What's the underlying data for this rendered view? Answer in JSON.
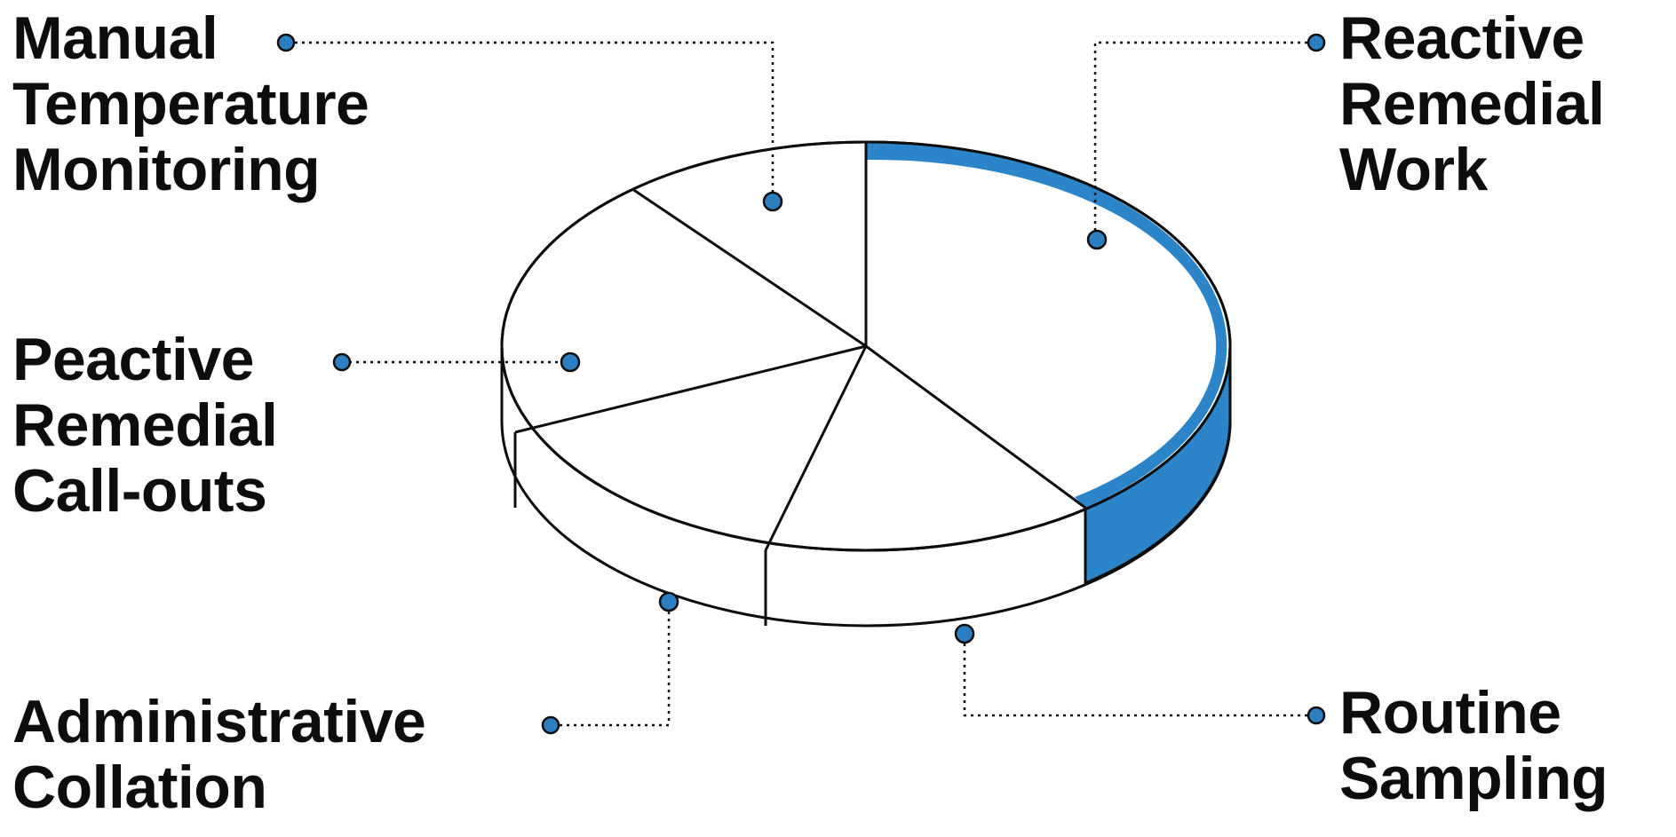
{
  "diagram": {
    "accent_color": "#2b85c8",
    "marker_color": "#2b7fc0",
    "outline_color": "#0d0d0d",
    "segments": [
      {
        "id": "reactive-remedial-work",
        "lines": [
          "Reactive",
          "Remedial",
          "Work"
        ],
        "highlighted": true
      },
      {
        "id": "routine-sampling",
        "lines": [
          "Routine",
          "Sampling"
        ],
        "highlighted": false
      },
      {
        "id": "administrative-collation",
        "lines": [
          "Administrative",
          "Collation"
        ],
        "highlighted": false
      },
      {
        "id": "peactive-remedial-call-outs",
        "lines": [
          "Peactive",
          "Remedial",
          "Call-outs"
        ],
        "highlighted": false
      },
      {
        "id": "manual-temperature-monitoring",
        "lines": [
          "Manual",
          "Temperature",
          "Monitoring"
        ],
        "highlighted": false
      }
    ]
  }
}
